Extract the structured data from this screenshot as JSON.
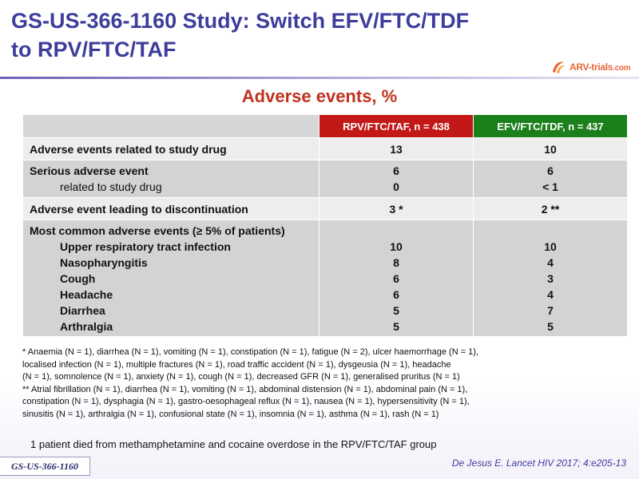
{
  "title": {
    "line1": "GS-US-366-1160 Study: Switch EFV/FTC/TDF",
    "line2": "to RPV/FTC/TAF"
  },
  "logo": {
    "name": "ARV-trials",
    "suffix": ".com",
    "icon": "ribbon-logo-icon",
    "color": "#e8663c"
  },
  "subtitle": "Adverse events, %",
  "table": {
    "headers": [
      "RPV/FTC/TAF,  n = 438",
      "EFV/FTC/TDF,  n = 437"
    ],
    "header_colors": [
      "#c21818",
      "#1b7f1b"
    ],
    "rows": [
      {
        "label": "Adverse events related to study drug",
        "rpv": "13",
        "efv": "10"
      },
      {
        "label": "Serious adverse event",
        "sublabel": "related to study drug",
        "rpv": "6",
        "rpv_sub": "0",
        "efv": "6",
        "efv_sub": "< 1"
      },
      {
        "label": "Adverse event leading to discontinuation",
        "rpv": "3 *",
        "efv": "2 **"
      },
      {
        "label": "Most common adverse events (≥ 5% of patients)",
        "items": [
          {
            "name": "Upper respiratory tract infection",
            "rpv": "10",
            "efv": "10"
          },
          {
            "name": "Nasopharyngitis",
            "rpv": "8",
            "efv": "4"
          },
          {
            "name": "Cough",
            "rpv": "6",
            "efv": "3"
          },
          {
            "name": "Headache",
            "rpv": "6",
            "efv": "4"
          },
          {
            "name": "Diarrhea",
            "rpv": "5",
            "efv": "7"
          },
          {
            "name": "Arthralgia",
            "rpv": "5",
            "efv": "5"
          }
        ]
      }
    ]
  },
  "footnotes": {
    "single_star": [
      "* Anaemia  (N = 1), diarrhea  (N = 1), vomiting  (N = 1), constipation  (N = 1), fatigue (N = 2), ulcer haemorrhage  (N = 1),",
      "localised  infection  (N = 1), multiple  fractures (N = 1), road traffic accident (N = 1), dysgeusia  (N = 1), headache",
      "(N = 1), somnolence  (N = 1), anxiety  (N = 1), cough (N = 1), decreased  GFR (N = 1), generalised  pruritus  (N = 1)"
    ],
    "double_star": [
      "** Atrial fibrillation  (N = 1), diarrhea  (N = 1), vomiting  (N = 1), abdominal distension  (N = 1), abdominal pain (N = 1),",
      "constipation  (N = 1), dysphagia  (N = 1), gastro-oesophageal  reflux  (N = 1), nausea  (N = 1), hypersensitivity  (N = 1),",
      "sinusitis  (N = 1), arthralgia  (N = 1), confusional  state  (N = 1), insomnia  (N = 1), asthma  (N = 1), rash (N = 1)"
    ]
  },
  "death_note": "1 patient died from methamphetamine and cocaine overdose in the RPV/FTC/TAF group",
  "footer_tag": "GS-US-366-1160",
  "reference": "De Jesus E. Lancet HIV 2017; 4:e205-13"
}
